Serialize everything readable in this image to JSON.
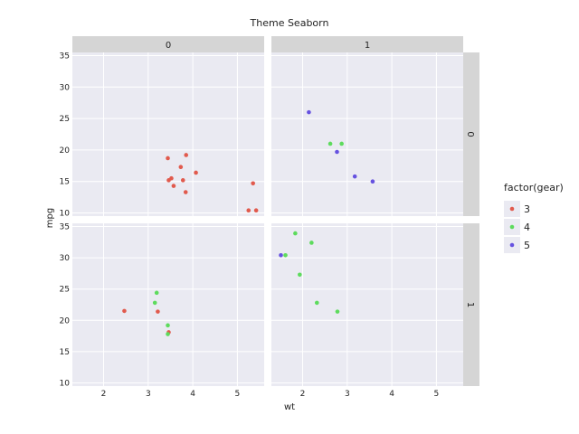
{
  "chart_data": {
    "type": "scatter",
    "title": "Theme Seaborn",
    "xlabel": "wt",
    "ylabel": "mpg",
    "xlim": [
      1.3,
      5.6
    ],
    "ylim": [
      9.5,
      35.5
    ],
    "xticks": [
      2,
      3,
      4,
      5
    ],
    "yticks": [
      10,
      15,
      20,
      25,
      30,
      35
    ],
    "grid": true,
    "facet_columns": [
      "0",
      "1"
    ],
    "facet_rows": [
      "0",
      "1"
    ],
    "legend": {
      "title": "factor(gear)",
      "position": "right",
      "entries": [
        {
          "label": "3",
          "color": "#e15a4d"
        },
        {
          "label": "4",
          "color": "#5ddb5d"
        },
        {
          "label": "5",
          "color": "#6652e0"
        }
      ]
    },
    "panels": [
      {
        "col": "0",
        "row": "0",
        "points": [
          {
            "x": 3.44,
            "y": 18.7,
            "gear": "3"
          },
          {
            "x": 3.46,
            "y": 15.2,
            "gear": "3"
          },
          {
            "x": 3.52,
            "y": 15.5,
            "gear": "3"
          },
          {
            "x": 3.57,
            "y": 14.3,
            "gear": "3"
          },
          {
            "x": 3.73,
            "y": 17.3,
            "gear": "3"
          },
          {
            "x": 3.78,
            "y": 15.2,
            "gear": "3"
          },
          {
            "x": 3.84,
            "y": 13.3,
            "gear": "3"
          },
          {
            "x": 3.85,
            "y": 19.2,
            "gear": "3"
          },
          {
            "x": 4.07,
            "y": 16.4,
            "gear": "3"
          },
          {
            "x": 5.25,
            "y": 10.4,
            "gear": "3"
          },
          {
            "x": 5.35,
            "y": 14.7,
            "gear": "3"
          },
          {
            "x": 5.42,
            "y": 10.4,
            "gear": "3"
          }
        ]
      },
      {
        "col": "1",
        "row": "0",
        "points": [
          {
            "x": 2.62,
            "y": 21.0,
            "gear": "4"
          },
          {
            "x": 2.875,
            "y": 21.0,
            "gear": "4"
          },
          {
            "x": 2.14,
            "y": 26.0,
            "gear": "5"
          },
          {
            "x": 2.77,
            "y": 19.7,
            "gear": "5"
          },
          {
            "x": 3.17,
            "y": 15.8,
            "gear": "5"
          },
          {
            "x": 3.57,
            "y": 15.0,
            "gear": "5"
          }
        ]
      },
      {
        "col": "0",
        "row": "1",
        "points": [
          {
            "x": 2.465,
            "y": 21.5,
            "gear": "3"
          },
          {
            "x": 3.215,
            "y": 21.4,
            "gear": "3"
          },
          {
            "x": 3.46,
            "y": 18.1,
            "gear": "3"
          },
          {
            "x": 3.19,
            "y": 24.4,
            "gear": "4"
          },
          {
            "x": 3.15,
            "y": 22.8,
            "gear": "4"
          },
          {
            "x": 3.44,
            "y": 19.2,
            "gear": "4"
          },
          {
            "x": 3.44,
            "y": 17.8,
            "gear": "4"
          }
        ]
      },
      {
        "col": "1",
        "row": "1",
        "points": [
          {
            "x": 1.835,
            "y": 33.9,
            "gear": "4"
          },
          {
            "x": 2.2,
            "y": 32.4,
            "gear": "4"
          },
          {
            "x": 1.615,
            "y": 30.4,
            "gear": "4"
          },
          {
            "x": 1.935,
            "y": 27.3,
            "gear": "4"
          },
          {
            "x": 2.32,
            "y": 22.8,
            "gear": "4"
          },
          {
            "x": 2.78,
            "y": 21.4,
            "gear": "4"
          },
          {
            "x": 1.513,
            "y": 30.4,
            "gear": "5"
          }
        ]
      }
    ]
  }
}
